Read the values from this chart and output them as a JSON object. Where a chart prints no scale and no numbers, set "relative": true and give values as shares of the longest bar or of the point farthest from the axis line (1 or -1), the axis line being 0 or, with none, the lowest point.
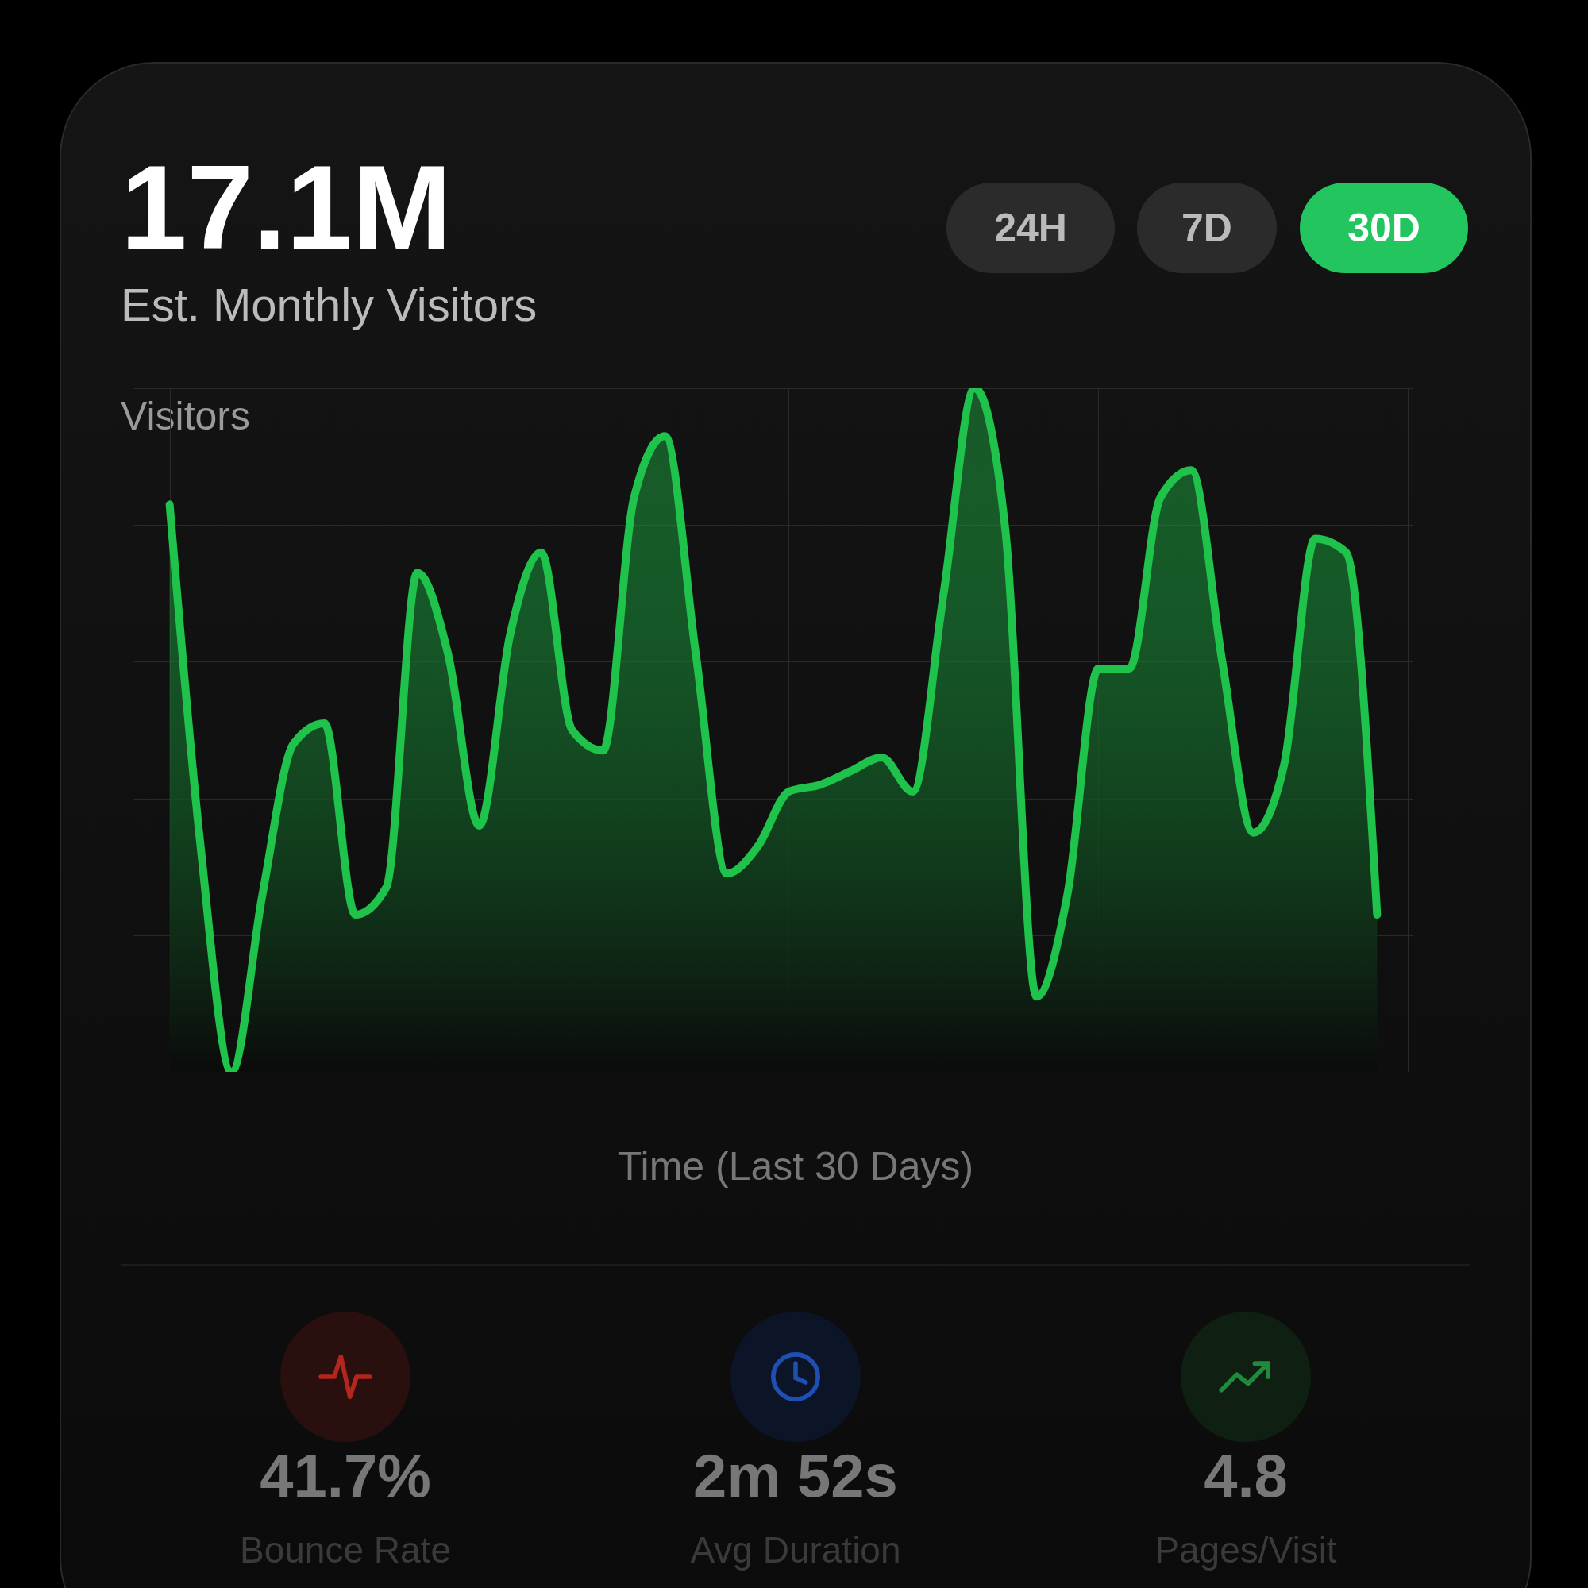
{
  "chart_data": {
    "type": "area",
    "title": "17.1M",
    "subtitle": "Est. Monthly Visitors",
    "ylabel": "Visitors",
    "xlabel": "Time (Last 30 Days)",
    "relative": true,
    "grid": true,
    "categories": [
      null,
      null,
      null,
      null,
      null,
      null,
      null,
      null,
      null,
      null,
      null,
      null,
      null,
      null,
      null,
      null,
      null,
      null,
      null,
      null,
      null,
      null,
      null,
      null,
      null,
      null,
      null,
      null,
      null,
      null,
      null,
      null,
      null,
      null,
      null,
      null,
      null,
      null,
      null,
      null
    ],
    "series": [
      {
        "color": "#1fc24a",
        "values": [
          0.83,
          0.33,
          0,
          0.26,
          0.48,
          0.51,
          0.23,
          0.27,
          0.73,
          0.61,
          0.36,
          0.64,
          0.76,
          0.5,
          0.47,
          0.84,
          0.93,
          0.61,
          0.29,
          0.33,
          0.41,
          0.42,
          0.44,
          0.46,
          0.41,
          0.7,
          1,
          0.79,
          0.11,
          0.26,
          0.59,
          0.59,
          0.84,
          0.88,
          0.6,
          0.35,
          0.45,
          0.78,
          0.76,
          0.23
        ]
      }
    ],
    "annotations": [
      "24H",
      "7D",
      "30D",
      "41.7%",
      "Bounce Rate",
      "2m 52s",
      "Avg Duration",
      "4.8",
      "Pages/Visit"
    ]
  }
}
